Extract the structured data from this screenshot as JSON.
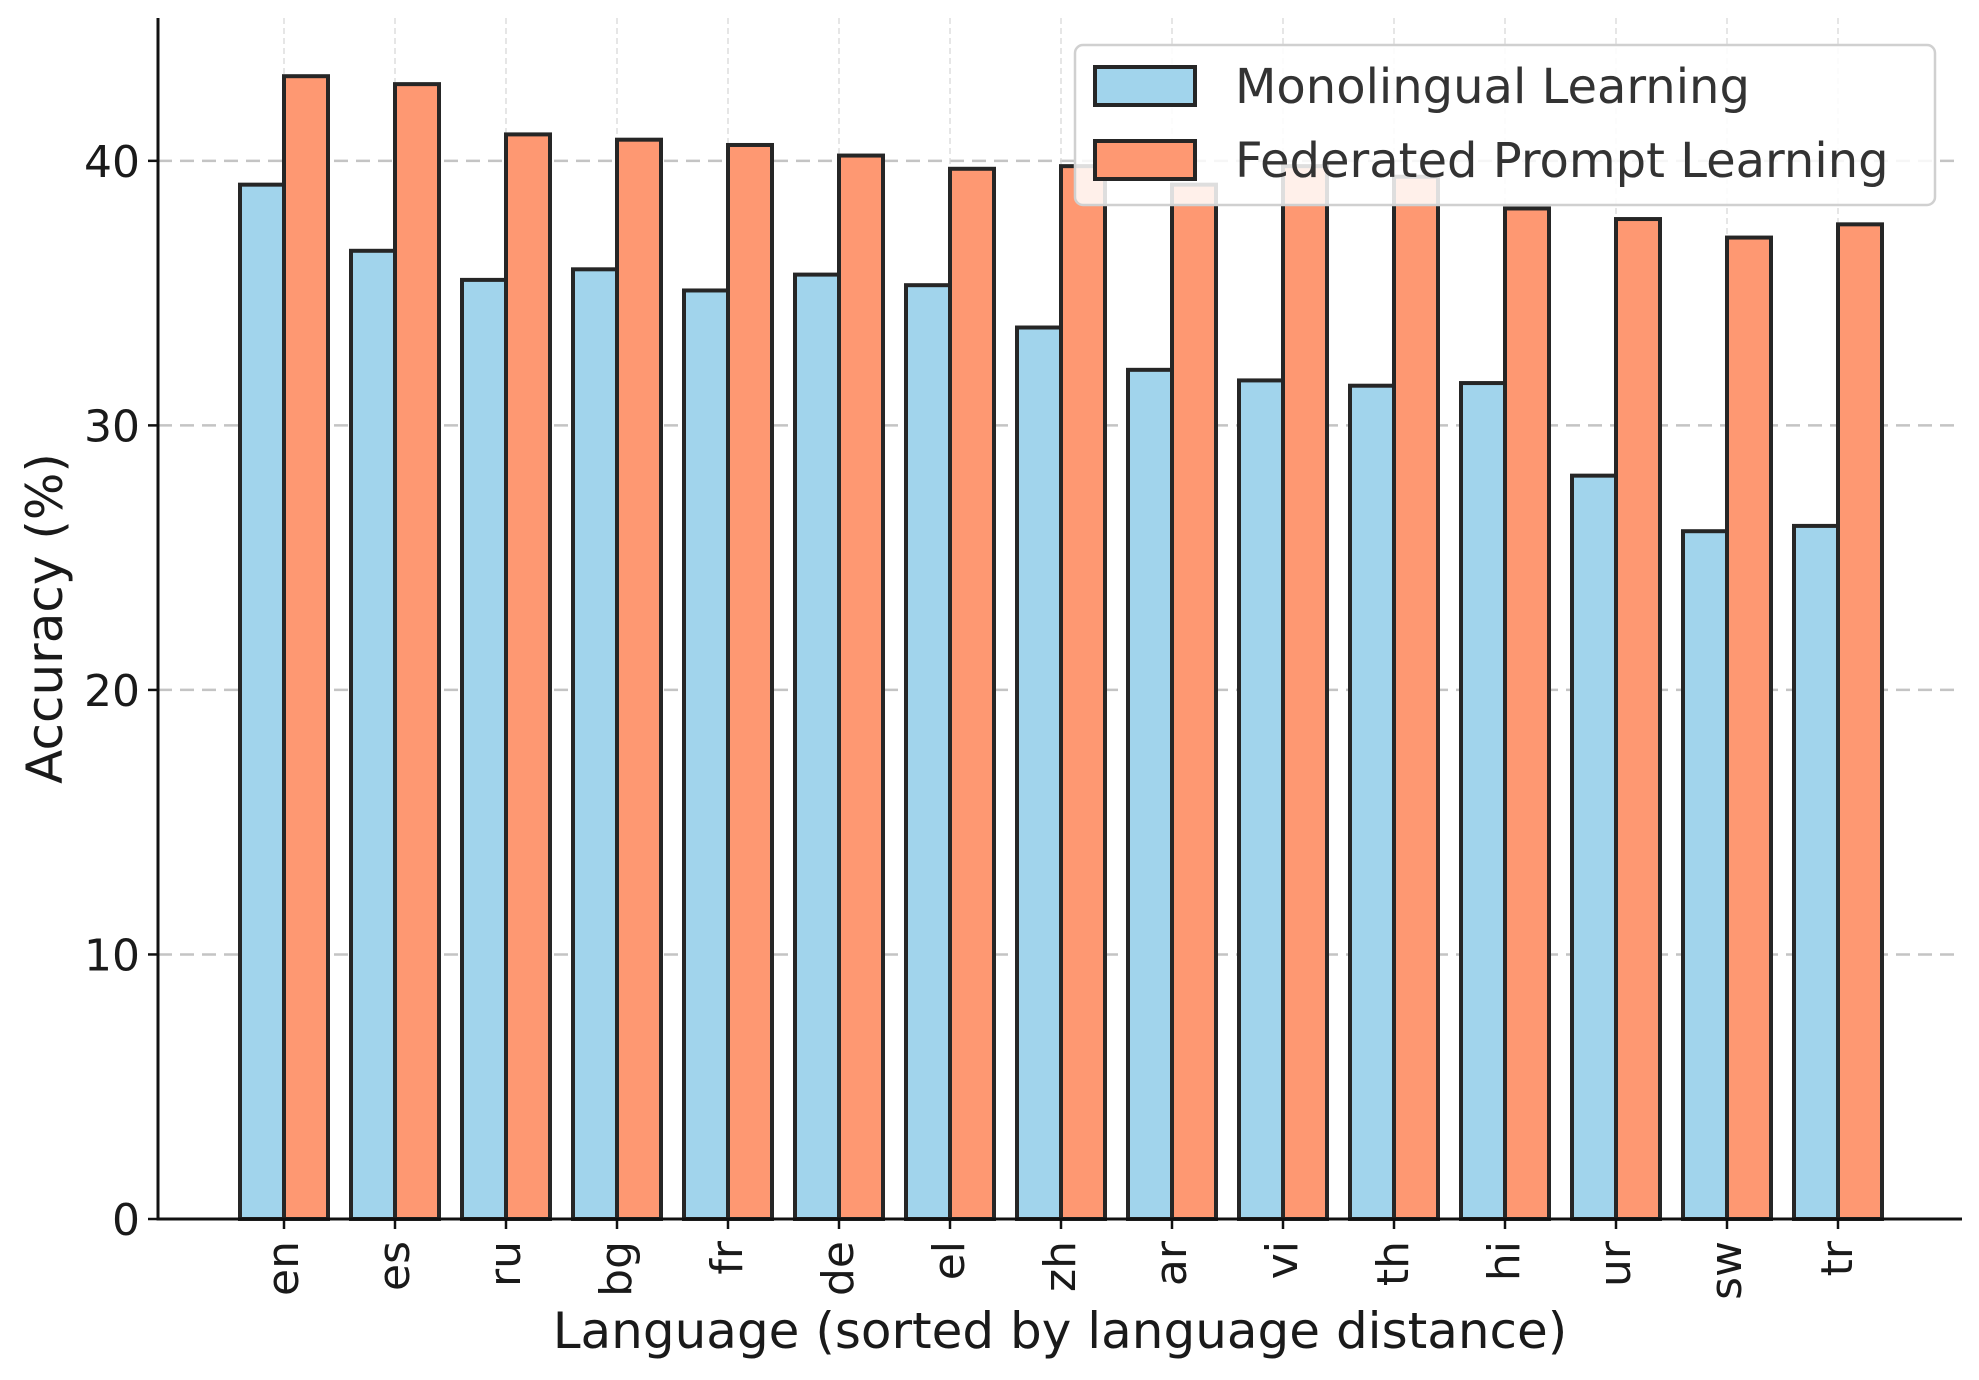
{
  "chart_data": {
    "type": "bar",
    "title": "",
    "xlabel": "Language (sorted by language distance)",
    "ylabel": "Accuracy (%)",
    "categories": [
      "en",
      "es",
      "ru",
      "bg",
      "fr",
      "de",
      "el",
      "zh",
      "ar",
      "vi",
      "th",
      "hi",
      "ur",
      "sw",
      "tr"
    ],
    "series": [
      {
        "name": "Monolingual Learning",
        "color": "#a1d4ec",
        "values": [
          39.1,
          36.6,
          35.5,
          35.9,
          35.1,
          35.7,
          35.3,
          33.7,
          32.1,
          31.7,
          31.5,
          31.6,
          28.1,
          26.0,
          26.2
        ]
      },
      {
        "name": "Federated Prompt Learning",
        "color": "#fe9872",
        "values": [
          43.2,
          42.9,
          41.0,
          40.8,
          40.6,
          40.2,
          39.7,
          39.8,
          39.1,
          39.8,
          39.4,
          38.2,
          37.8,
          37.1,
          37.6
        ]
      }
    ],
    "yticks": [
      0,
      10,
      20,
      30,
      40
    ],
    "ylim": [
      0,
      45.4
    ],
    "grid": "y-dashed",
    "legend_position": "top-right"
  }
}
